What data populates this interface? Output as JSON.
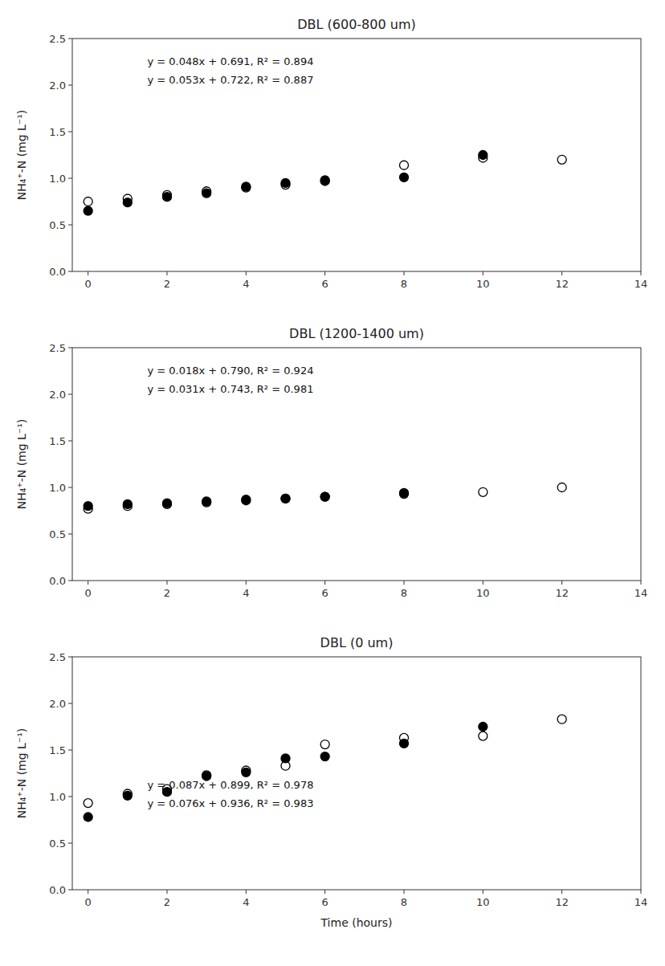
{
  "chart_data": [
    {
      "type": "scatter",
      "title": "DBL (600-800 um)",
      "y_label": "NH₄⁺-N (mg L⁻¹)",
      "series": [
        {
          "color": "white",
          "marker": "circle",
          "x": [
            0,
            1,
            2,
            3,
            4,
            5,
            6,
            8,
            10,
            12
          ],
          "values": [
            0.75,
            0.78,
            0.82,
            0.86,
            0.9,
            0.93,
            0.97,
            1.14,
            1.22,
            1.2
          ]
        },
        {
          "color": "black",
          "marker": "circle",
          "x": [
            0,
            1,
            2,
            3,
            4,
            5,
            6,
            8,
            10
          ],
          "values": [
            0.65,
            0.74,
            0.8,
            0.84,
            0.91,
            0.95,
            0.98,
            1.01,
            1.25
          ]
        }
      ],
      "annotations": [
        {
          "text": "y = 0.048x + 0.691, R² = 0.894",
          "x": 1.5,
          "y": 2.18
        },
        {
          "text": "y = 0.053x + 0.722, R² = 0.887",
          "x": 1.5,
          "y": 1.98
        }
      ],
      "xlim": [
        -0.4,
        14
      ],
      "xticks": [
        0,
        2,
        4,
        6,
        8,
        10,
        12,
        14
      ],
      "ylim": [
        0.0,
        2.5
      ],
      "yticks": [
        {
          "value": 0.0,
          "label": "0.0"
        },
        0.5,
        {
          "value": 1.0,
          "label": "1.0"
        },
        1.5,
        {
          "value": 2.0,
          "label": "2.0"
        },
        2.5
      ],
      "grid": false
    },
    {
      "type": "scatter",
      "title": "DBL (1200-1400 um)",
      "y_label": "NH₄⁺-N (mg L⁻¹)",
      "series": [
        {
          "color": "white",
          "marker": "circle",
          "x": [
            0,
            1,
            2,
            3,
            4,
            5,
            6,
            8,
            10,
            12
          ],
          "values": [
            0.77,
            0.8,
            0.82,
            0.84,
            0.86,
            0.88,
            0.9,
            0.93,
            0.95,
            1.0
          ]
        },
        {
          "color": "black",
          "marker": "circle",
          "x": [
            0,
            1,
            2,
            3,
            4,
            5,
            6,
            8
          ],
          "values": [
            0.8,
            0.82,
            0.83,
            0.85,
            0.87,
            0.88,
            0.9,
            0.94
          ]
        }
      ],
      "annotations": [
        {
          "text": "y = 0.018x + 0.790, R² = 0.924",
          "x": 1.5,
          "y": 2.18
        },
        {
          "text": "y = 0.031x + 0.743, R² = 0.981",
          "x": 1.5,
          "y": 1.98
        }
      ],
      "xlim": [
        -0.4,
        14
      ],
      "xticks": [
        0,
        2,
        4,
        6,
        8,
        10,
        12,
        14
      ],
      "ylim": [
        0.0,
        2.5
      ],
      "yticks": [
        {
          "value": 0.0,
          "label": "0.0"
        },
        0.5,
        {
          "value": 1.0,
          "label": "1.0"
        },
        1.5,
        {
          "value": 2.0,
          "label": "2.0"
        },
        2.5
      ],
      "grid": false
    },
    {
      "type": "scatter",
      "title": "DBL (0 um)",
      "y_label": "NH₄⁺-N (mg L⁻¹)",
      "x_label": "Time (hours)",
      "series": [
        {
          "color": "white",
          "marker": "circle",
          "x": [
            0,
            1,
            2,
            3,
            4,
            5,
            6,
            8,
            10,
            12
          ],
          "values": [
            0.93,
            1.03,
            1.08,
            1.23,
            1.28,
            1.33,
            1.56,
            1.63,
            1.65,
            1.83
          ]
        },
        {
          "color": "black",
          "marker": "circle",
          "x": [
            0,
            1,
            2,
            3,
            4,
            5,
            6,
            8,
            10
          ],
          "values": [
            0.78,
            1.01,
            1.05,
            1.22,
            1.26,
            1.41,
            1.43,
            1.57,
            1.75
          ]
        }
      ],
      "annotations": [
        {
          "text": "y = 0.087x + 0.899, R² = 0.978",
          "x": 1.5,
          "y": 1.05
        },
        {
          "text": "y = 0.076x + 0.936, R² = 0.983",
          "x": 1.5,
          "y": 0.85
        }
      ],
      "xlim": [
        -0.4,
        14
      ],
      "xticks": [
        0,
        2,
        4,
        6,
        8,
        10,
        12,
        14
      ],
      "ylim": [
        0.0,
        2.5
      ],
      "yticks": [
        {
          "value": 0.0,
          "label": "0.0"
        },
        0.5,
        {
          "value": 1.0,
          "label": "1.0"
        },
        1.5,
        {
          "value": 2.0,
          "label": "2.0"
        },
        2.5
      ],
      "grid": false
    }
  ]
}
